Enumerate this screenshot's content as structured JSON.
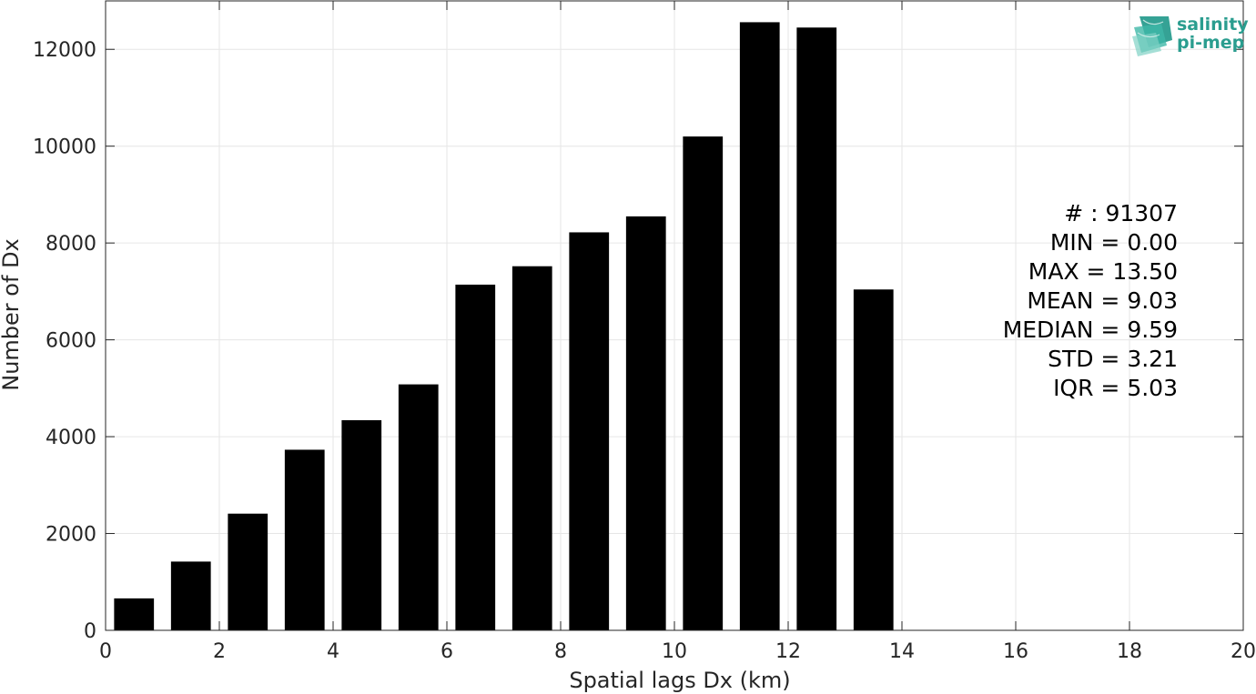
{
  "chart_data": {
    "type": "bar",
    "xlabel": "Spatial lags Dx (km)",
    "ylabel": "Number of Dx",
    "xlim": [
      0,
      20
    ],
    "ylim": [
      0,
      13000
    ],
    "grid": true,
    "bar_color": "#000000",
    "bar_width": 0.7,
    "x": [
      0.5,
      1.5,
      2.5,
      3.5,
      4.5,
      5.5,
      6.5,
      7.5,
      8.5,
      9.5,
      10.5,
      11.5,
      12.5,
      13.5,
      14.5,
      15.5,
      16.5,
      17.5,
      18.5,
      19.5
    ],
    "values": [
      660,
      1420,
      2410,
      3730,
      4340,
      5080,
      7140,
      7520,
      8220,
      8550,
      10200,
      12560,
      12450,
      7040,
      0,
      0,
      0,
      0,
      0,
      0
    ],
    "xticks": [
      "0",
      "2",
      "4",
      "6",
      "8",
      "10",
      "12",
      "14",
      "16",
      "18",
      "20"
    ],
    "yticks": [
      "0",
      "2000",
      "4000",
      "6000",
      "8000",
      "10000",
      "12000"
    ],
    "stats": [
      "# : 91307",
      "MIN = 0.00",
      "MAX =  13.50",
      "MEAN = 9.03",
      "MEDIAN = 9.59",
      "STD = 3.21",
      "IQR = 5.03"
    ]
  },
  "logo": {
    "line1": "salinity",
    "line2": "pi-mep",
    "color": "#2a9d8f"
  }
}
